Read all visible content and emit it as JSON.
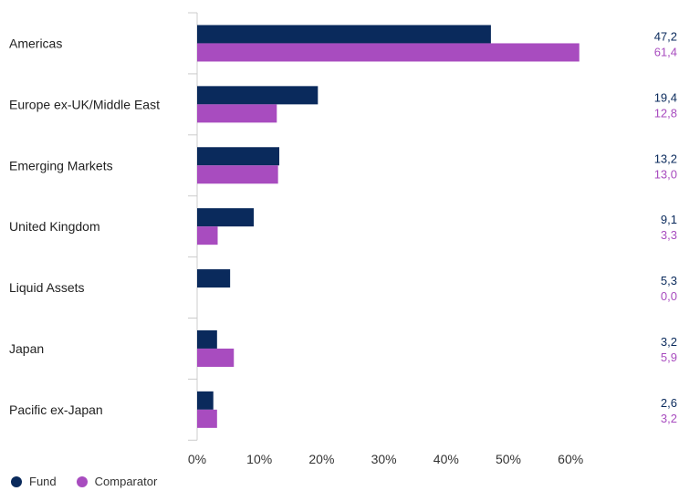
{
  "chart_data": {
    "type": "bar",
    "orientation": "horizontal",
    "categories": [
      "Americas",
      "Europe ex-UK/Middle East",
      "Emerging Markets",
      "United Kingdom",
      "Liquid Assets",
      "Japan",
      "Pacific ex-Japan"
    ],
    "series": [
      {
        "name": "Fund",
        "color": "#0a2a5c",
        "values": [
          47.2,
          19.4,
          13.2,
          9.1,
          5.3,
          3.2,
          2.6
        ],
        "labels": [
          "47,2",
          "19,4",
          "13,2",
          "9,1",
          "5,3",
          "3,2",
          "2,6"
        ]
      },
      {
        "name": "Comparator",
        "color": "#a84cbf",
        "values": [
          61.4,
          12.8,
          13.0,
          3.3,
          0.0,
          5.9,
          3.2
        ],
        "labels": [
          "61,4",
          "12,8",
          "13,0",
          "3,3",
          "0,0",
          "5,9",
          "3,2"
        ]
      }
    ],
    "xlim": [
      0,
      70
    ],
    "xticks": [
      0,
      10,
      20,
      30,
      40,
      50,
      60
    ],
    "xtick_labels": [
      "0%",
      "10%",
      "20%",
      "30%",
      "40%",
      "50%",
      "60%"
    ],
    "legend_position": "bottom-left"
  },
  "legend": {
    "fund_label": "Fund",
    "comparator_label": "Comparator"
  }
}
